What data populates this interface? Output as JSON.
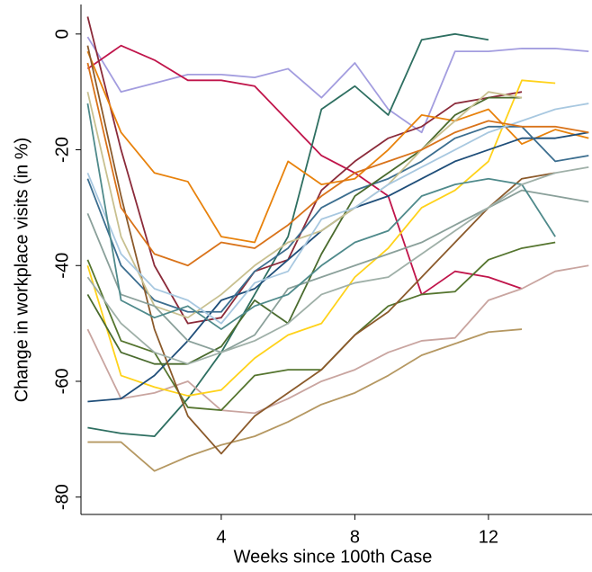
{
  "chart_data": {
    "type": "line",
    "x_label": "Weeks since 100th Case",
    "y_label": "Change in workplace visits (in %)",
    "x": [
      0,
      1,
      2,
      3,
      4,
      5,
      6,
      7,
      8,
      9,
      10,
      11,
      12,
      13,
      14,
      15
    ],
    "xlim": [
      -0.2,
      15.1
    ],
    "xticks": [
      4,
      8,
      12
    ],
    "ylim": [
      -83,
      5.1
    ],
    "yticks": [
      0,
      -20,
      -40,
      -60,
      -80
    ],
    "grid": false,
    "series": [
      {
        "color": "#a39ddf",
        "values": [
          -0.5,
          -10,
          -8.5,
          -7,
          -7,
          -7.5,
          -6,
          -11,
          -5,
          -13,
          -17,
          -3,
          -3,
          -2.5,
          -2.5,
          -3
        ]
      },
      {
        "color": "#c0154b",
        "values": [
          -6,
          -2,
          -4.5,
          -8,
          -8,
          -9,
          -15,
          -21,
          -24,
          -28,
          -45,
          -41,
          -42,
          -44,
          null,
          null
        ]
      },
      {
        "color": "#2e6f61",
        "values": [
          -68,
          -69,
          -69.5,
          -63,
          -55,
          -45,
          -35,
          -13,
          -9,
          -14,
          -1,
          0,
          -1,
          null,
          null,
          null
        ]
      },
      {
        "color": "#8b2b3a",
        "values": [
          3,
          -20,
          -40,
          -50,
          -49,
          -41,
          -39,
          -27,
          -22,
          -18,
          -16,
          -12,
          -11,
          -10,
          null,
          null
        ]
      },
      {
        "color": "#b59862",
        "values": [
          -70.5,
          -70.5,
          -75.5,
          -73,
          -71,
          -69.5,
          -67,
          -64,
          -62,
          -59,
          -55.5,
          -53.5,
          -51.5,
          -51,
          null,
          null
        ]
      },
      {
        "color": "#c9a5a0",
        "values": [
          -51,
          -63,
          -62,
          -60,
          -65,
          -65.5,
          -63,
          -60,
          -58,
          -55,
          -53,
          -52.5,
          -46,
          -44,
          -41,
          -40
        ]
      },
      {
        "color": "#e8820c",
        "values": [
          -3,
          -17,
          -24,
          -25.5,
          -35,
          -36,
          -22,
          -26,
          -25,
          -20,
          -14,
          -15,
          -13,
          -19,
          -16.5,
          -18
        ]
      },
      {
        "color": "#ffd21a",
        "values": [
          -40,
          -59,
          -61,
          -62.5,
          -61.5,
          -56,
          -52,
          -50,
          -42,
          -37,
          -30,
          -27,
          -22,
          -8,
          -8.5,
          null
        ]
      },
      {
        "color": "#55752f",
        "values": [
          -39,
          -53,
          -55,
          -64.5,
          -65,
          -59,
          -58,
          -58,
          -52,
          -47,
          -45,
          -44.5,
          -39,
          -37,
          -36,
          null
        ]
      },
      {
        "color": "#1f4e79",
        "values": [
          -63.5,
          -63,
          -59,
          -53,
          -46,
          -44,
          -39,
          -34,
          -30,
          -28,
          -25,
          -22,
          -20,
          -18,
          -18,
          -17
        ]
      },
      {
        "color": "#3c6e8f",
        "values": [
          -25,
          -40,
          -46,
          -48,
          -48,
          -41,
          -37,
          -30,
          -27,
          -25,
          -22,
          -18,
          -16,
          -16,
          -22,
          -21
        ]
      },
      {
        "color": "#4a6b2e",
        "values": [
          -45,
          -55,
          -57,
          -57,
          -54,
          -46,
          -50,
          -38,
          -28,
          -24,
          -20,
          -14,
          -11,
          -11,
          null,
          null
        ]
      },
      {
        "color": "#8b5a2b",
        "values": [
          -2,
          -28,
          -51,
          -66,
          -72.5,
          -66,
          -62,
          -58,
          -52,
          -48,
          -42,
          -36,
          -30,
          -25,
          -24,
          null
        ]
      },
      {
        "color": "#c8c090",
        "values": [
          -10,
          -35,
          -47,
          -49,
          -45,
          -40,
          -36,
          -34,
          -30,
          -26,
          -20,
          -15,
          -10,
          -11,
          null,
          null
        ]
      },
      {
        "color": "#a8c8e0",
        "values": [
          -24,
          -38,
          -44,
          -46,
          -50,
          -43,
          -41,
          -32,
          -30,
          -26,
          -23,
          -20,
          -17,
          -15,
          -13,
          -12
        ]
      },
      {
        "color": "#8aa09a",
        "values": [
          -31,
          -45,
          -47,
          -53,
          -55,
          -52,
          -44,
          -42,
          -40,
          -38,
          -36,
          -33,
          -30,
          -27,
          -28,
          -29
        ]
      },
      {
        "color": "#d9731a",
        "values": [
          -5,
          -30,
          -38,
          -40,
          -36,
          -37,
          -33,
          -28,
          -24,
          -22,
          -20,
          -17,
          -15,
          -16,
          -16,
          -17
        ]
      },
      {
        "color": "#4f8a8b",
        "values": [
          -12,
          -46,
          -49,
          -47,
          -51,
          -47,
          -45,
          -40,
          -36,
          -34,
          -28,
          -26,
          -25,
          -26,
          -35,
          null
        ]
      },
      {
        "color": "#9fb0a8",
        "values": [
          -42,
          -50,
          -55,
          -57,
          -55,
          -53,
          -50,
          -45,
          -43,
          -42,
          -38,
          -34,
          -30,
          -26,
          -24,
          -23
        ]
      }
    ]
  }
}
